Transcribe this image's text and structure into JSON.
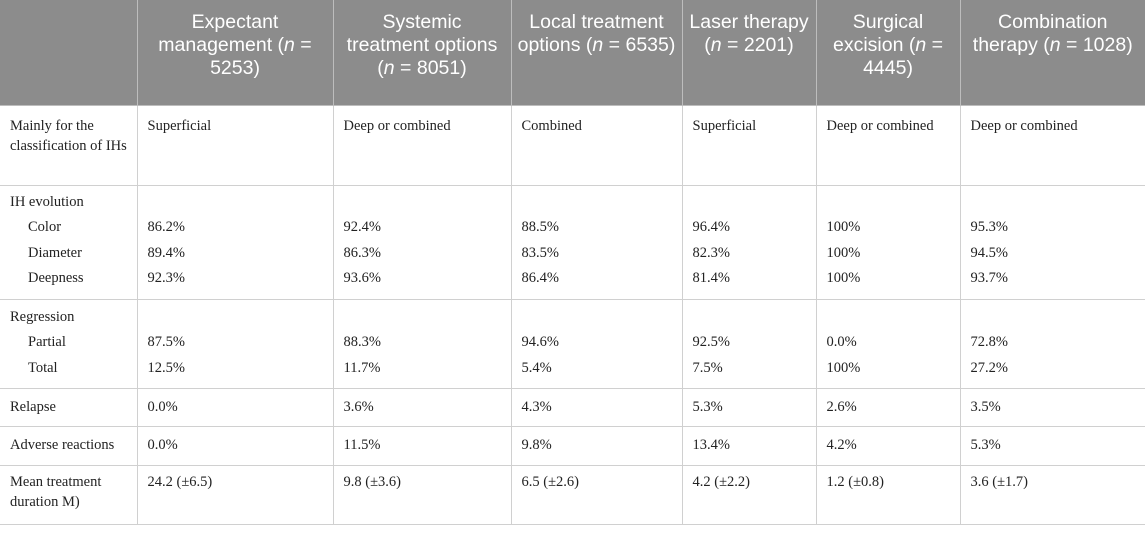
{
  "table": {
    "columns": [
      {
        "text_before": "",
        "n_symbol": "",
        "text_after": ""
      },
      {
        "text_before": "Expectant management (",
        "n_symbol": "n",
        "text_after": " = 5253)"
      },
      {
        "text_before": "Systemic treatment options (",
        "n_symbol": "n",
        "text_after": " = 8051)"
      },
      {
        "text_before": "Local treatment options (",
        "n_symbol": "n",
        "text_after": " = 6535)"
      },
      {
        "text_before": "Laser therapy (",
        "n_symbol": "n",
        "text_after": " = 2201)"
      },
      {
        "text_before": "Surgical excision (",
        "n_symbol": "n",
        "text_after": " = 4445)"
      },
      {
        "text_before": "Combination therapy (",
        "n_symbol": "n",
        "text_after": " = 1028)"
      }
    ],
    "classification": {
      "label": "Mainly for the classification of IHs",
      "values": [
        "Superficial",
        "Deep or combined",
        "Combined",
        "Superficial",
        "Deep or combined",
        "Deep or combined"
      ]
    },
    "evolution": {
      "label": "IH evolution",
      "color_label": "Color",
      "diameter_label": "Diameter",
      "deepness_label": "Deepness",
      "color": [
        "86.2%",
        "92.4%",
        "88.5%",
        "96.4%",
        "100%",
        "95.3%"
      ],
      "diameter": [
        "89.4%",
        "86.3%",
        "83.5%",
        "82.3%",
        "100%",
        "94.5%"
      ],
      "deepness": [
        "92.3%",
        "93.6%",
        "86.4%",
        "81.4%",
        "100%",
        "93.7%"
      ]
    },
    "regression": {
      "label": "Regression",
      "partial_label": "Partial",
      "total_label": "Total",
      "partial": [
        "87.5%",
        "88.3%",
        "94.6%",
        "92.5%",
        "0.0%",
        "72.8%"
      ],
      "total": [
        "12.5%",
        "11.7%",
        "5.4%",
        "7.5%",
        "100%",
        "27.2%"
      ]
    },
    "relapse": {
      "label": "Relapse",
      "values": [
        "0.0%",
        "3.6%",
        "4.3%",
        "5.3%",
        "2.6%",
        "3.5%"
      ]
    },
    "adverse": {
      "label": "Adverse reactions",
      "values": [
        "0.0%",
        "11.5%",
        "9.8%",
        "13.4%",
        "4.2%",
        "5.3%"
      ]
    },
    "mean_duration": {
      "label": "Mean treatment duration M)",
      "values": [
        "24.2 (±6.5)",
        "9.8 (±3.6)",
        "6.5 (±2.6)",
        "4.2 (±2.2)",
        "1.2 (±0.8)",
        "3.6 (±1.7)"
      ]
    }
  }
}
